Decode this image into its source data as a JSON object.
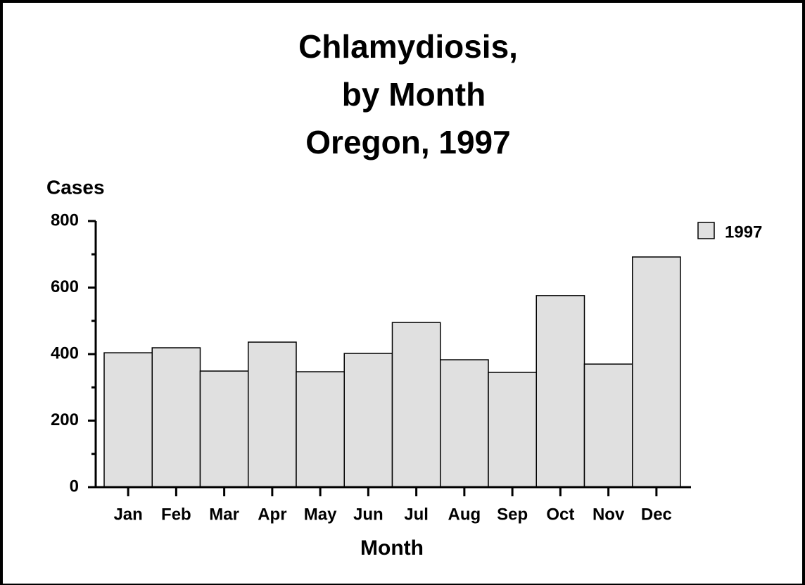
{
  "chart_data": {
    "type": "bar",
    "title": [
      "Chlamydiosis,",
      "by Month",
      "Oregon, 1997"
    ],
    "y_label": "Cases",
    "x_label": "Month",
    "categories": [
      "Jan",
      "Feb",
      "Mar",
      "Apr",
      "May",
      "Jun",
      "Jul",
      "Aug",
      "Sep",
      "Oct",
      "Nov",
      "Dec"
    ],
    "series": [
      {
        "name": "1997",
        "color": "#e0e0e0",
        "values": [
          404,
          419,
          349,
          436,
          347,
          402,
          495,
          383,
          345,
          576,
          370,
          692
        ]
      }
    ],
    "ylim": [
      0,
      800
    ],
    "yticks": [
      0,
      200,
      400,
      600,
      800
    ],
    "yminor_ticks": [
      100,
      300,
      500,
      700
    ],
    "legend": "top-right"
  }
}
